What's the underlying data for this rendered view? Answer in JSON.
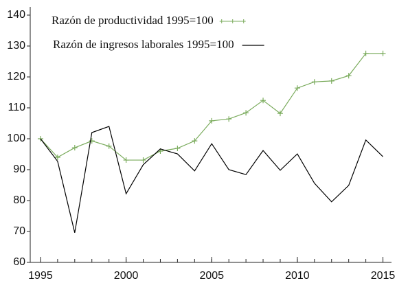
{
  "chart_data": {
    "type": "line",
    "x": [
      1995,
      1996,
      1997,
      1998,
      1999,
      2000,
      2001,
      2002,
      2003,
      2004,
      2005,
      2006,
      2007,
      2008,
      2009,
      2010,
      2011,
      2012,
      2013,
      2014,
      2015
    ],
    "series": [
      {
        "name": "Razón de productividad 1995=100",
        "color": "#7aab5c",
        "marker": "+",
        "values": [
          100,
          94,
          97.1,
          99.3,
          97.6,
          93.1,
          93.1,
          96,
          96.9,
          99.3,
          105.8,
          106.4,
          108.4,
          112.4,
          108.2,
          116.4,
          118.4,
          118.7,
          120.4,
          127.6,
          127.6
        ]
      },
      {
        "name": "Razón de ingresos laborales 1995=100",
        "color": "#000000",
        "values": [
          100,
          92.7,
          69.6,
          102,
          104,
          82.2,
          91.6,
          96.7,
          95.1,
          89.6,
          98.4,
          90,
          88.4,
          96.2,
          89.8,
          95.1,
          85.6,
          79.6,
          84.9,
          99.6,
          94.2
        ]
      }
    ],
    "xlim": [
      1994.4,
      2015.5
    ],
    "xticks": [
      1995,
      2000,
      2005,
      2010,
      2015
    ],
    "ylim": [
      60,
      140
    ],
    "yticks": [
      60,
      70,
      80,
      90,
      100,
      110,
      120,
      130,
      140
    ]
  }
}
